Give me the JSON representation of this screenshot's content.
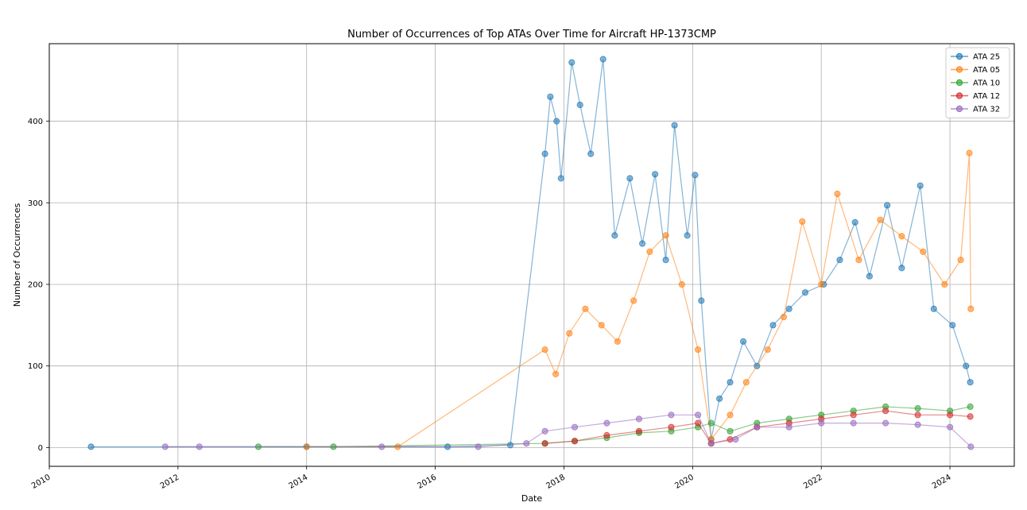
{
  "chart_data": {
    "type": "line",
    "title": "Number of Occurrences of Top ATAs Over Time for Aircraft HP-1373CMP",
    "xlabel": "Date",
    "ylabel": "Number of Occurrences",
    "xlim": [
      "2010-01-01",
      "2025-01-01"
    ],
    "ylim": [
      -23,
      495
    ],
    "x_ticks": [
      "2010",
      "2012",
      "2014",
      "2016",
      "2018",
      "2020",
      "2022",
      "2024"
    ],
    "y_ticks": [
      0,
      100,
      200,
      300,
      400
    ],
    "grid": true,
    "legend_position": "top-right",
    "markers": "circle",
    "series": [
      {
        "name": "ATA 25",
        "color": "#1f77b4",
        "points": [
          [
            "2010-08-25",
            1
          ],
          [
            "2014-01-01",
            1
          ],
          [
            "2016-03-10",
            1
          ],
          [
            "2017-03-01",
            3
          ],
          [
            "2017-09-15",
            360
          ],
          [
            "2017-10-15",
            430
          ],
          [
            "2017-11-20",
            400
          ],
          [
            "2017-12-15",
            330
          ],
          [
            "2018-02-15",
            472
          ],
          [
            "2018-04-01",
            420
          ],
          [
            "2018-06-01",
            360
          ],
          [
            "2018-08-10",
            476
          ],
          [
            "2018-10-15",
            260
          ],
          [
            "2019-01-10",
            330
          ],
          [
            "2019-03-20",
            250
          ],
          [
            "2019-06-01",
            335
          ],
          [
            "2019-08-01",
            230
          ],
          [
            "2019-09-20",
            395
          ],
          [
            "2019-12-01",
            260
          ],
          [
            "2020-01-15",
            334
          ],
          [
            "2020-02-20",
            180
          ],
          [
            "2020-04-15",
            10
          ],
          [
            "2020-06-01",
            60
          ],
          [
            "2020-08-01",
            80
          ],
          [
            "2020-10-15",
            130
          ],
          [
            "2021-01-01",
            100
          ],
          [
            "2021-04-01",
            150
          ],
          [
            "2021-07-01",
            170
          ],
          [
            "2021-10-01",
            190
          ],
          [
            "2022-01-15",
            200
          ],
          [
            "2022-04-15",
            230
          ],
          [
            "2022-07-10",
            276
          ],
          [
            "2022-10-01",
            210
          ],
          [
            "2023-01-10",
            297
          ],
          [
            "2023-04-01",
            220
          ],
          [
            "2023-07-15",
            321
          ],
          [
            "2023-10-01",
            170
          ],
          [
            "2024-01-15",
            150
          ],
          [
            "2024-04-01",
            100
          ],
          [
            "2024-04-25",
            80
          ]
        ]
      },
      {
        "name": "ATA 05",
        "color": "#ff7f0e",
        "points": [
          [
            "2014-01-01",
            1
          ],
          [
            "2015-06-01",
            1
          ],
          [
            "2017-09-15",
            120
          ],
          [
            "2017-11-15",
            90
          ],
          [
            "2018-02-01",
            140
          ],
          [
            "2018-05-01",
            170
          ],
          [
            "2018-08-01",
            150
          ],
          [
            "2018-11-01",
            130
          ],
          [
            "2019-02-01",
            180
          ],
          [
            "2019-05-01",
            240
          ],
          [
            "2019-08-01",
            260
          ],
          [
            "2019-11-01",
            200
          ],
          [
            "2020-02-01",
            120
          ],
          [
            "2020-04-15",
            10
          ],
          [
            "2020-08-01",
            40
          ],
          [
            "2020-11-01",
            80
          ],
          [
            "2021-03-01",
            120
          ],
          [
            "2021-06-01",
            160
          ],
          [
            "2021-09-15",
            277
          ],
          [
            "2022-01-01",
            200
          ],
          [
            "2022-04-01",
            311
          ],
          [
            "2022-08-01",
            230
          ],
          [
            "2022-12-01",
            279
          ],
          [
            "2023-04-01",
            259
          ],
          [
            "2023-08-01",
            240
          ],
          [
            "2023-12-01",
            200
          ],
          [
            "2024-03-01",
            230
          ],
          [
            "2024-04-20",
            361
          ],
          [
            "2024-04-28",
            170
          ]
        ]
      },
      {
        "name": "ATA 10",
        "color": "#2ca02c",
        "points": [
          [
            "2013-04-01",
            1
          ],
          [
            "2014-06-01",
            1
          ],
          [
            "2017-09-15",
            5
          ],
          [
            "2018-03-01",
            8
          ],
          [
            "2018-09-01",
            12
          ],
          [
            "2019-03-01",
            18
          ],
          [
            "2019-09-01",
            20
          ],
          [
            "2020-02-01",
            25
          ],
          [
            "2020-04-15",
            30
          ],
          [
            "2020-08-01",
            20
          ],
          [
            "2021-01-01",
            30
          ],
          [
            "2021-07-01",
            35
          ],
          [
            "2022-01-01",
            40
          ],
          [
            "2022-07-01",
            45
          ],
          [
            "2023-01-01",
            50
          ],
          [
            "2023-07-01",
            48
          ],
          [
            "2024-01-01",
            45
          ],
          [
            "2024-04-25",
            50
          ]
        ]
      },
      {
        "name": "ATA 12",
        "color": "#d62728",
        "points": [
          [
            "2017-09-15",
            5
          ],
          [
            "2018-03-01",
            8
          ],
          [
            "2018-09-01",
            15
          ],
          [
            "2019-03-01",
            20
          ],
          [
            "2019-09-01",
            25
          ],
          [
            "2020-02-01",
            30
          ],
          [
            "2020-04-15",
            5
          ],
          [
            "2020-08-01",
            10
          ],
          [
            "2021-01-01",
            25
          ],
          [
            "2021-07-01",
            30
          ],
          [
            "2022-01-01",
            35
          ],
          [
            "2022-07-01",
            40
          ],
          [
            "2023-01-01",
            45
          ],
          [
            "2023-07-01",
            40
          ],
          [
            "2024-01-01",
            40
          ],
          [
            "2024-04-25",
            38
          ]
        ]
      },
      {
        "name": "ATA 32",
        "color": "#9467bd",
        "points": [
          [
            "2011-10-20",
            1
          ],
          [
            "2012-05-01",
            1
          ],
          [
            "2015-03-01",
            1
          ],
          [
            "2016-09-01",
            1
          ],
          [
            "2017-06-01",
            5
          ],
          [
            "2017-09-15",
            20
          ],
          [
            "2018-03-01",
            25
          ],
          [
            "2018-09-01",
            30
          ],
          [
            "2019-03-01",
            35
          ],
          [
            "2019-09-01",
            40
          ],
          [
            "2020-02-01",
            40
          ],
          [
            "2020-04-15",
            5
          ],
          [
            "2020-09-01",
            10
          ],
          [
            "2021-01-01",
            25
          ],
          [
            "2021-07-01",
            25
          ],
          [
            "2022-01-01",
            30
          ],
          [
            "2022-07-01",
            30
          ],
          [
            "2023-01-01",
            30
          ],
          [
            "2023-07-01",
            28
          ],
          [
            "2024-01-01",
            25
          ],
          [
            "2024-04-28",
            1
          ]
        ]
      }
    ]
  }
}
